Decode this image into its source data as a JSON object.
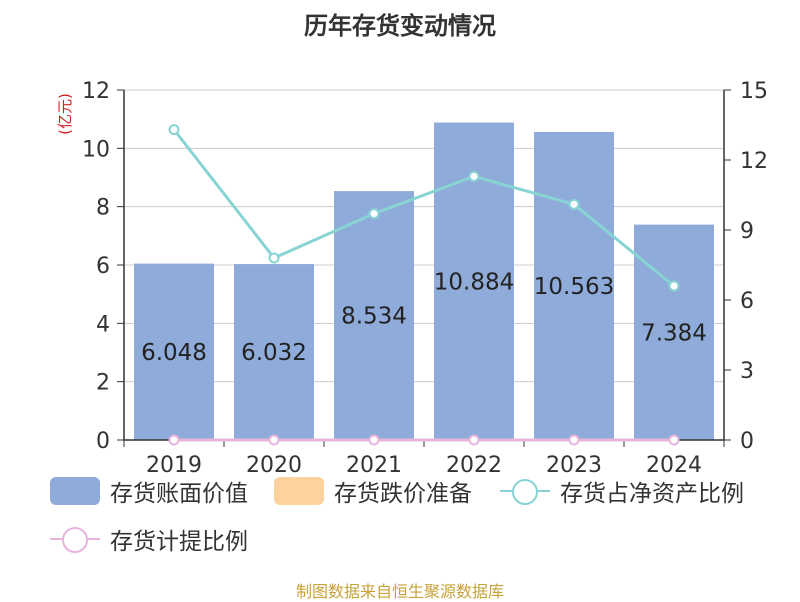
{
  "chart_data": {
    "type": "bar",
    "title": "历年存货变动情况",
    "ylabel": "(亿元)",
    "ylim": [
      0,
      12
    ],
    "yticks": [
      0,
      2,
      4,
      6,
      8,
      10,
      12
    ],
    "y2lim": [
      0,
      15
    ],
    "y2ticks": [
      0,
      3,
      6,
      9,
      12,
      15
    ],
    "categories": [
      "2019",
      "2020",
      "2021",
      "2022",
      "2023",
      "2024"
    ],
    "series": [
      {
        "name": "存货账面价值",
        "kind": "bar",
        "axis": "left",
        "color": "#8eabd9",
        "values": [
          6.048,
          6.032,
          8.534,
          10.884,
          10.563,
          7.384
        ],
        "labels": [
          "6.048",
          "6.032",
          "8.534",
          "10.884",
          "10.563",
          "7.384"
        ]
      },
      {
        "name": "存货跌价准备",
        "kind": "bar",
        "axis": "left",
        "color": "#fcd39e",
        "values": [
          0,
          0,
          0,
          0,
          0,
          0
        ]
      },
      {
        "name": "存货占净资产比例",
        "kind": "line",
        "axis": "right",
        "color": "#88d4d4",
        "values": [
          13.3,
          7.8,
          9.7,
          11.3,
          10.1,
          6.6
        ]
      },
      {
        "name": "存货计提比例",
        "kind": "line",
        "axis": "right",
        "color": "#e8b4dc",
        "values": [
          0,
          0,
          0,
          0,
          0,
          0
        ]
      }
    ],
    "grid": true,
    "legend": "bottom"
  },
  "source": "制图数据来自恒生聚源数据库"
}
